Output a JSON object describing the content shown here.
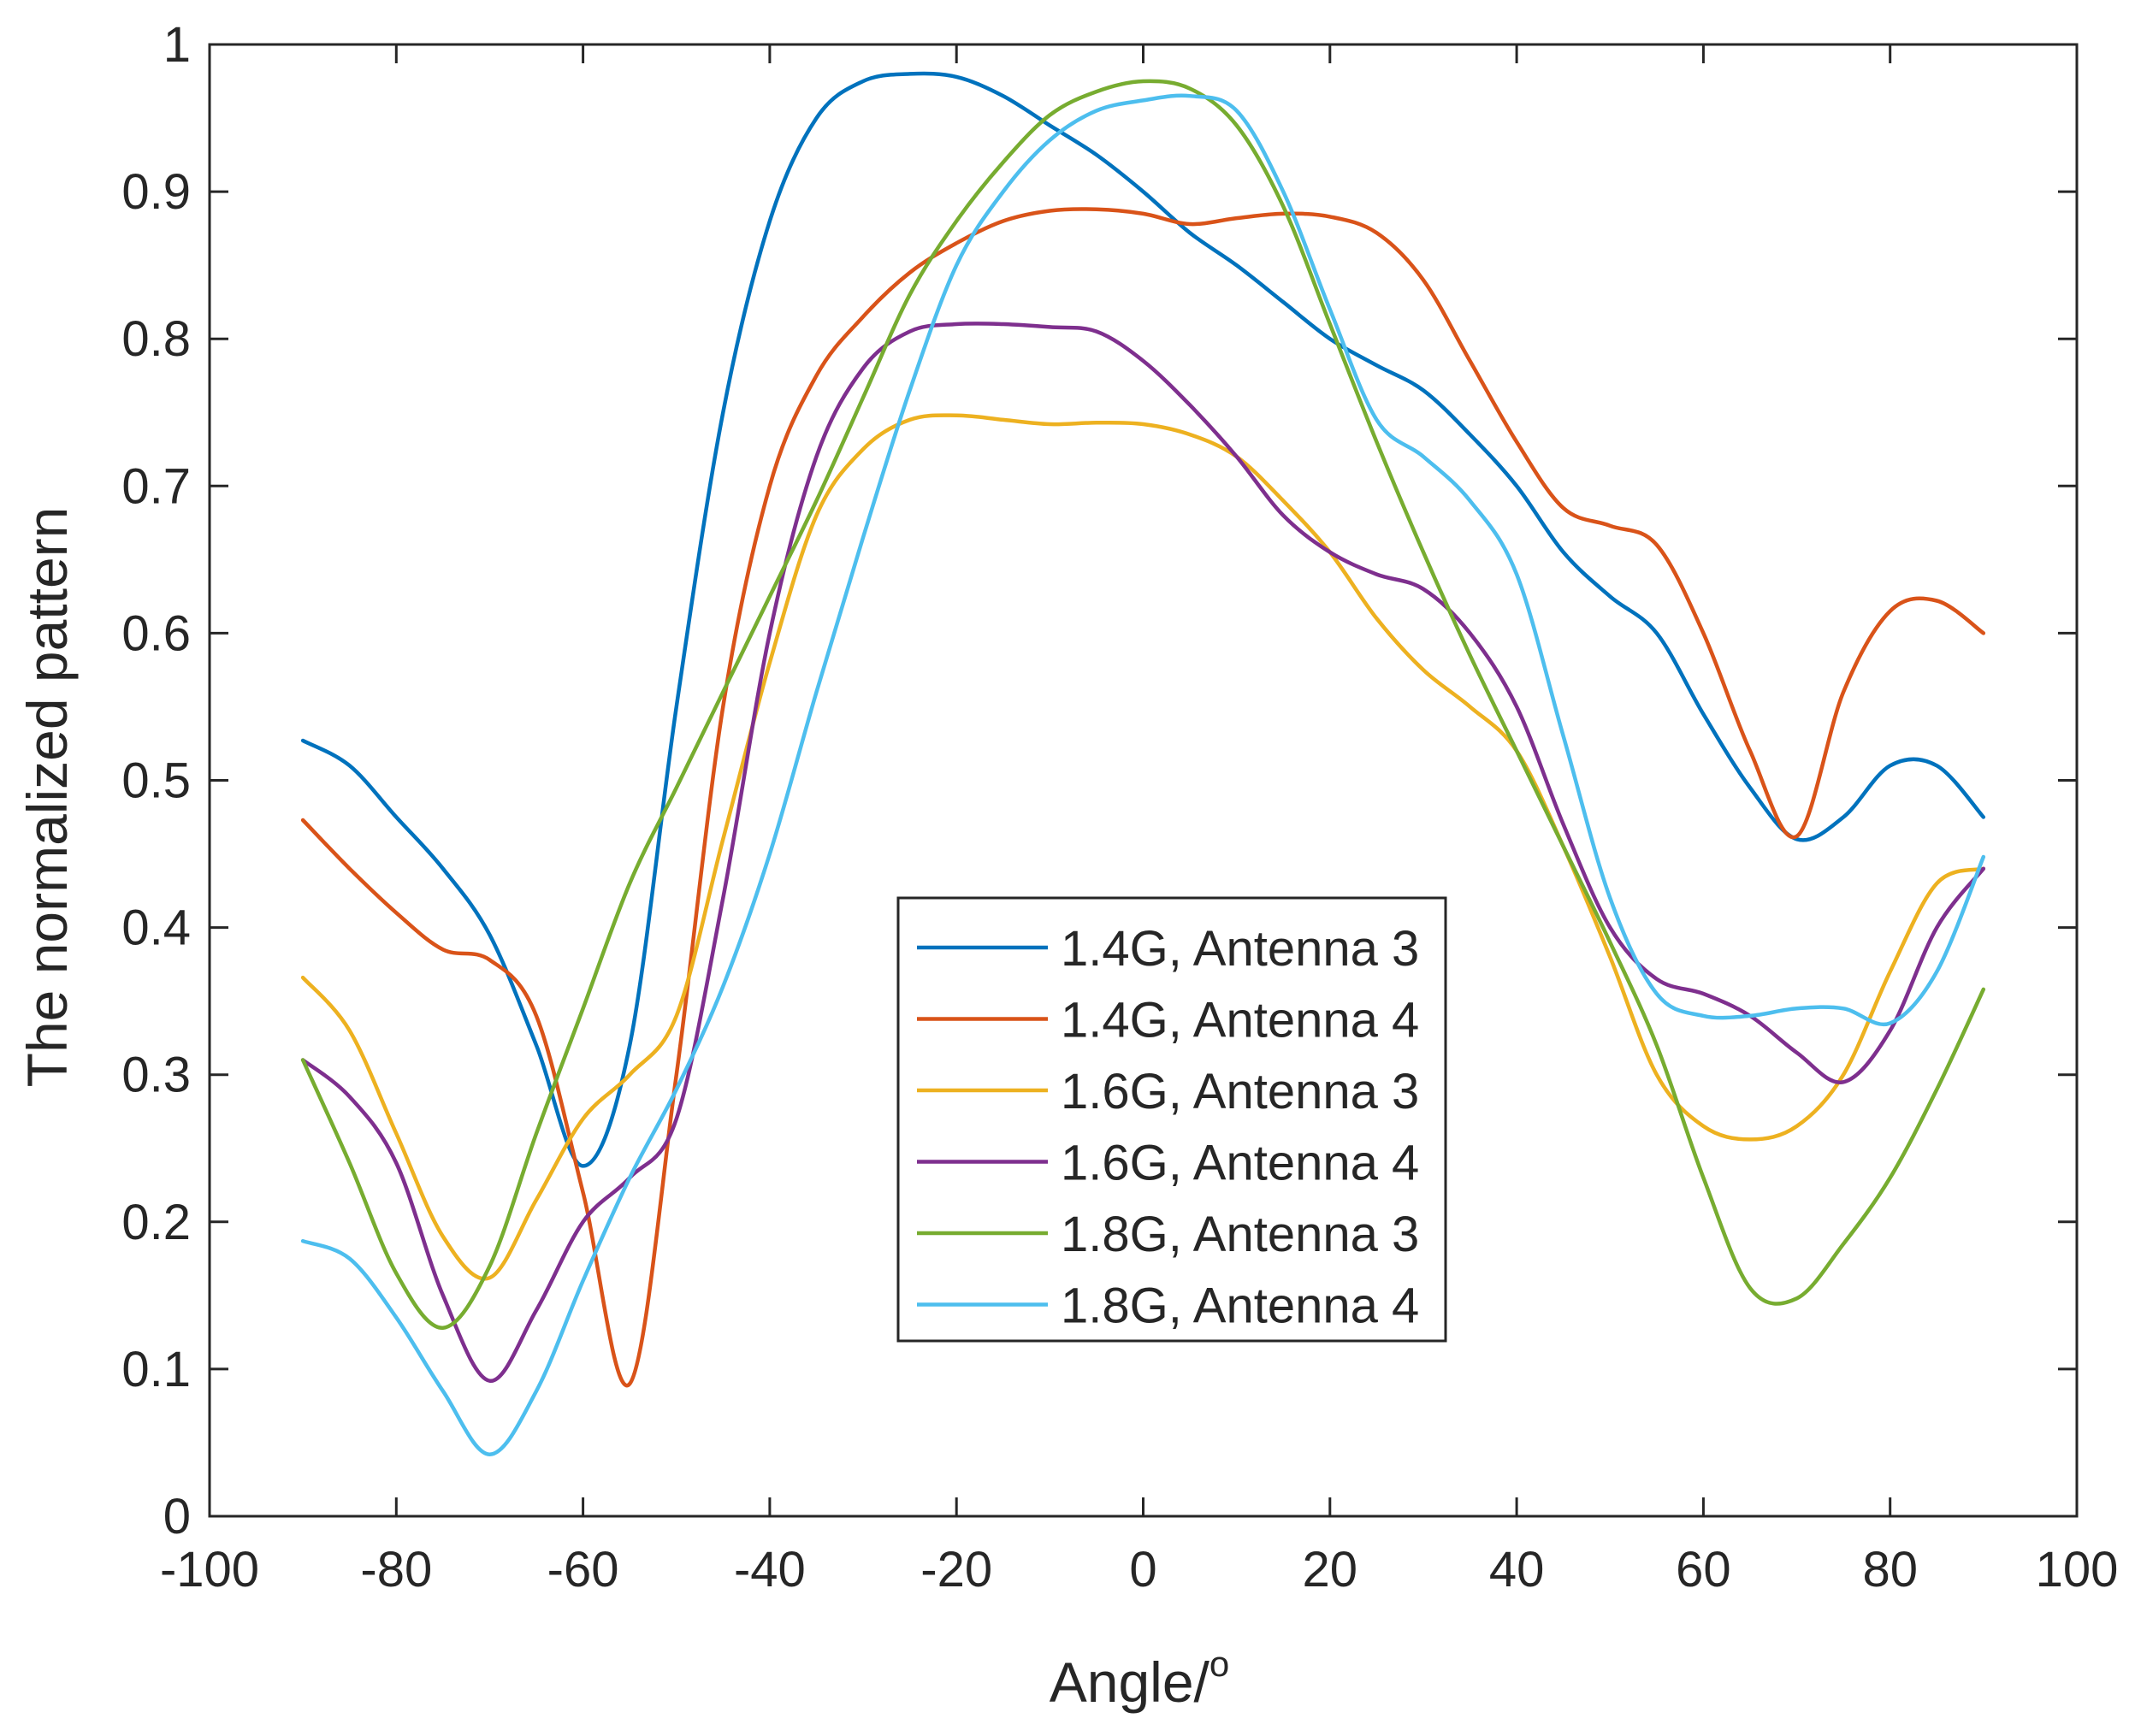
{
  "chart_data": {
    "type": "line",
    "title": "",
    "xlabel": "Angle/",
    "xlabel_superscript": "o",
    "ylabel": "The normalized pattern",
    "xlim": [
      -100,
      100
    ],
    "ylim": [
      0,
      1
    ],
    "xticks": [
      -100,
      -80,
      -60,
      -40,
      -20,
      0,
      20,
      40,
      60,
      80,
      100
    ],
    "yticks": [
      0,
      0.1,
      0.2,
      0.3,
      0.4,
      0.5,
      0.6,
      0.7,
      0.8,
      0.9,
      1
    ],
    "xtick_labels": [
      "-100",
      "-80",
      "-60",
      "-40",
      "-20",
      "0",
      "20",
      "40",
      "60",
      "80",
      "100"
    ],
    "ytick_labels": [
      "0",
      "0.1",
      "0.2",
      "0.3",
      "0.4",
      "0.5",
      "0.6",
      "0.7",
      "0.8",
      "0.9",
      "1"
    ],
    "grid": false,
    "legend_position": "center-right",
    "x": [
      -90,
      -85,
      -80,
      -75,
      -70,
      -65,
      -60,
      -55,
      -50,
      -45,
      -40,
      -35,
      -30,
      -25,
      -20,
      -15,
      -10,
      -5,
      0,
      5,
      10,
      15,
      20,
      25,
      30,
      35,
      40,
      45,
      50,
      55,
      60,
      65,
      70,
      75,
      80,
      85,
      90
    ],
    "series": [
      {
        "name": "1.4G, Antenna 3",
        "color": "#0072BD",
        "values": [
          0.527,
          0.51,
          0.475,
          0.44,
          0.395,
          0.32,
          0.238,
          0.32,
          0.55,
          0.75,
          0.88,
          0.95,
          0.975,
          0.98,
          0.978,
          0.965,
          0.945,
          0.925,
          0.9,
          0.872,
          0.85,
          0.825,
          0.8,
          0.782,
          0.765,
          0.735,
          0.7,
          0.655,
          0.625,
          0.6,
          0.545,
          0.495,
          0.46,
          0.475,
          0.51,
          0.51,
          0.475
        ]
      },
      {
        "name": "1.4G, Antenna 4",
        "color": "#D95319",
        "values": [
          0.473,
          0.44,
          0.41,
          0.385,
          0.378,
          0.34,
          0.22,
          0.09,
          0.3,
          0.55,
          0.7,
          0.775,
          0.815,
          0.845,
          0.865,
          0.88,
          0.887,
          0.888,
          0.885,
          0.878,
          0.882,
          0.885,
          0.883,
          0.872,
          0.84,
          0.785,
          0.73,
          0.685,
          0.673,
          0.66,
          0.6,
          0.52,
          0.462,
          0.56,
          0.615,
          0.622,
          0.6
        ]
      },
      {
        "name": "1.6G, Antenna 3",
        "color": "#EDB120",
        "values": [
          0.366,
          0.33,
          0.26,
          0.19,
          0.162,
          0.215,
          0.27,
          0.3,
          0.34,
          0.46,
          0.58,
          0.68,
          0.725,
          0.745,
          0.748,
          0.745,
          0.742,
          0.743,
          0.742,
          0.735,
          0.72,
          0.69,
          0.655,
          0.61,
          0.575,
          0.55,
          0.52,
          0.455,
          0.38,
          0.3,
          0.265,
          0.256,
          0.265,
          0.3,
          0.37,
          0.43,
          0.44
        ]
      },
      {
        "name": "1.6G, Antenna 4",
        "color": "#7E2F8E",
        "values": [
          0.31,
          0.285,
          0.24,
          0.15,
          0.092,
          0.14,
          0.2,
          0.23,
          0.27,
          0.42,
          0.6,
          0.72,
          0.78,
          0.805,
          0.81,
          0.81,
          0.808,
          0.805,
          0.785,
          0.755,
          0.72,
          0.68,
          0.655,
          0.64,
          0.63,
          0.6,
          0.55,
          0.47,
          0.4,
          0.365,
          0.355,
          0.34,
          0.315,
          0.295,
          0.33,
          0.4,
          0.44
        ]
      },
      {
        "name": "1.8G, Antenna 3",
        "color": "#77AC30",
        "values": [
          0.31,
          0.24,
          0.165,
          0.128,
          0.17,
          0.26,
          0.345,
          0.43,
          0.495,
          0.56,
          0.625,
          0.69,
          0.76,
          0.83,
          0.88,
          0.92,
          0.952,
          0.968,
          0.975,
          0.97,
          0.945,
          0.89,
          0.81,
          0.73,
          0.655,
          0.585,
          0.52,
          0.455,
          0.39,
          0.32,
          0.23,
          0.155,
          0.148,
          0.185,
          0.23,
          0.29,
          0.358
        ]
      },
      {
        "name": "1.8G, Antenna 4",
        "color": "#4DBEEE",
        "values": [
          0.187,
          0.175,
          0.135,
          0.085,
          0.042,
          0.085,
          0.16,
          0.23,
          0.29,
          0.36,
          0.45,
          0.56,
          0.665,
          0.765,
          0.85,
          0.9,
          0.935,
          0.955,
          0.962,
          0.965,
          0.955,
          0.9,
          0.82,
          0.745,
          0.72,
          0.69,
          0.64,
          0.53,
          0.42,
          0.355,
          0.34,
          0.34,
          0.345,
          0.345,
          0.335,
          0.37,
          0.448
        ]
      }
    ]
  }
}
